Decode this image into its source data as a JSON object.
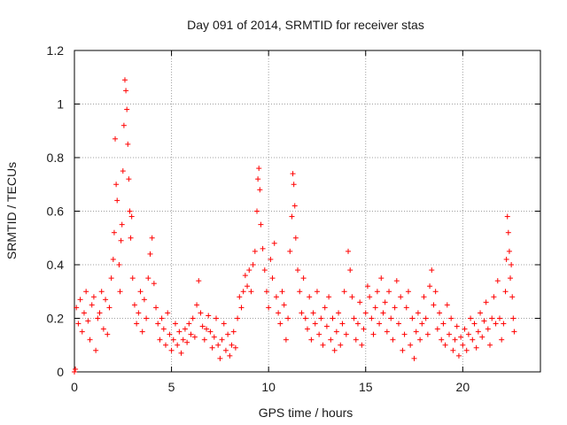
{
  "chart_data": {
    "type": "scatter",
    "title": "Day 091 of 2014, SRMTID for receiver stas",
    "xlabel": "GPS time / hours",
    "ylabel": "SRMTID / TECUs",
    "xlim": [
      0,
      24
    ],
    "ylim": [
      0,
      1.2
    ],
    "xticks": [
      0,
      5,
      10,
      15,
      20
    ],
    "yticks": [
      0,
      0.2,
      0.4,
      0.6,
      0.8,
      1,
      1.2
    ],
    "ytick_labels": [
      "0",
      "0.2",
      "0.4",
      "0.6",
      "0.8",
      "1",
      "1.2"
    ],
    "grid": true,
    "marker": "+",
    "color": "#ff0000",
    "series": [
      {
        "name": "SRMTID",
        "points": [
          [
            0.0,
            0.0
          ],
          [
            0.05,
            0.01
          ],
          [
            0.1,
            0.24
          ],
          [
            0.2,
            0.18
          ],
          [
            0.3,
            0.27
          ],
          [
            0.4,
            0.15
          ],
          [
            0.5,
            0.22
          ],
          [
            0.6,
            0.3
          ],
          [
            0.7,
            0.19
          ],
          [
            0.8,
            0.12
          ],
          [
            0.9,
            0.25
          ],
          [
            1.0,
            0.28
          ],
          [
            1.1,
            0.08
          ],
          [
            1.2,
            0.2
          ],
          [
            1.3,
            0.22
          ],
          [
            1.4,
            0.3
          ],
          [
            1.5,
            0.16
          ],
          [
            1.6,
            0.27
          ],
          [
            1.7,
            0.14
          ],
          [
            1.8,
            0.24
          ],
          [
            1.9,
            0.35
          ],
          [
            2.0,
            0.42
          ],
          [
            2.05,
            0.52
          ],
          [
            2.1,
            0.87
          ],
          [
            2.15,
            0.7
          ],
          [
            2.2,
            0.64
          ],
          [
            2.3,
            0.4
          ],
          [
            2.35,
            0.3
          ],
          [
            2.4,
            0.49
          ],
          [
            2.45,
            0.55
          ],
          [
            2.5,
            0.75
          ],
          [
            2.55,
            0.92
          ],
          [
            2.6,
            1.09
          ],
          [
            2.65,
            1.05
          ],
          [
            2.7,
            0.98
          ],
          [
            2.75,
            0.85
          ],
          [
            2.8,
            0.72
          ],
          [
            2.85,
            0.6
          ],
          [
            2.9,
            0.5
          ],
          [
            2.95,
            0.58
          ],
          [
            3.0,
            0.35
          ],
          [
            3.1,
            0.25
          ],
          [
            3.2,
            0.18
          ],
          [
            3.3,
            0.22
          ],
          [
            3.4,
            0.3
          ],
          [
            3.5,
            0.15
          ],
          [
            3.6,
            0.27
          ],
          [
            3.7,
            0.2
          ],
          [
            3.8,
            0.35
          ],
          [
            3.9,
            0.44
          ],
          [
            4.0,
            0.5
          ],
          [
            4.1,
            0.33
          ],
          [
            4.2,
            0.24
          ],
          [
            4.3,
            0.18
          ],
          [
            4.4,
            0.12
          ],
          [
            4.5,
            0.2
          ],
          [
            4.6,
            0.16
          ],
          [
            4.7,
            0.1
          ],
          [
            4.8,
            0.22
          ],
          [
            4.9,
            0.14
          ],
          [
            5.0,
            0.08
          ],
          [
            5.1,
            0.12
          ],
          [
            5.2,
            0.18
          ],
          [
            5.3,
            0.1
          ],
          [
            5.4,
            0.15
          ],
          [
            5.5,
            0.07
          ],
          [
            5.6,
            0.12
          ],
          [
            5.7,
            0.16
          ],
          [
            5.8,
            0.11
          ],
          [
            5.9,
            0.18
          ],
          [
            6.0,
            0.14
          ],
          [
            6.1,
            0.2
          ],
          [
            6.2,
            0.13
          ],
          [
            6.3,
            0.25
          ],
          [
            6.4,
            0.34
          ],
          [
            6.5,
            0.22
          ],
          [
            6.6,
            0.17
          ],
          [
            6.7,
            0.12
          ],
          [
            6.8,
            0.16
          ],
          [
            6.9,
            0.21
          ],
          [
            7.0,
            0.15
          ],
          [
            7.1,
            0.09
          ],
          [
            7.2,
            0.13
          ],
          [
            7.3,
            0.2
          ],
          [
            7.4,
            0.1
          ],
          [
            7.5,
            0.05
          ],
          [
            7.6,
            0.12
          ],
          [
            7.7,
            0.18
          ],
          [
            7.8,
            0.08
          ],
          [
            7.9,
            0.14
          ],
          [
            8.0,
            0.06
          ],
          [
            8.1,
            0.1
          ],
          [
            8.2,
            0.15
          ],
          [
            8.3,
            0.09
          ],
          [
            8.4,
            0.2
          ],
          [
            8.5,
            0.28
          ],
          [
            8.6,
            0.24
          ],
          [
            8.7,
            0.3
          ],
          [
            8.8,
            0.36
          ],
          [
            8.9,
            0.32
          ],
          [
            9.0,
            0.38
          ],
          [
            9.1,
            0.3
          ],
          [
            9.2,
            0.4
          ],
          [
            9.3,
            0.45
          ],
          [
            9.4,
            0.6
          ],
          [
            9.45,
            0.72
          ],
          [
            9.5,
            0.76
          ],
          [
            9.55,
            0.68
          ],
          [
            9.6,
            0.55
          ],
          [
            9.7,
            0.46
          ],
          [
            9.8,
            0.38
          ],
          [
            9.9,
            0.3
          ],
          [
            10.0,
            0.24
          ],
          [
            10.1,
            0.42
          ],
          [
            10.2,
            0.35
          ],
          [
            10.3,
            0.48
          ],
          [
            10.4,
            0.28
          ],
          [
            10.5,
            0.22
          ],
          [
            10.6,
            0.18
          ],
          [
            10.7,
            0.3
          ],
          [
            10.8,
            0.25
          ],
          [
            10.9,
            0.12
          ],
          [
            11.0,
            0.2
          ],
          [
            11.1,
            0.45
          ],
          [
            11.2,
            0.58
          ],
          [
            11.25,
            0.74
          ],
          [
            11.3,
            0.7
          ],
          [
            11.35,
            0.62
          ],
          [
            11.4,
            0.5
          ],
          [
            11.5,
            0.38
          ],
          [
            11.6,
            0.3
          ],
          [
            11.7,
            0.22
          ],
          [
            11.8,
            0.35
          ],
          [
            11.9,
            0.2
          ],
          [
            12.0,
            0.16
          ],
          [
            12.1,
            0.28
          ],
          [
            12.2,
            0.12
          ],
          [
            12.3,
            0.22
          ],
          [
            12.4,
            0.18
          ],
          [
            12.5,
            0.3
          ],
          [
            12.6,
            0.14
          ],
          [
            12.7,
            0.2
          ],
          [
            12.8,
            0.1
          ],
          [
            12.9,
            0.24
          ],
          [
            13.0,
            0.17
          ],
          [
            13.1,
            0.28
          ],
          [
            13.2,
            0.12
          ],
          [
            13.3,
            0.2
          ],
          [
            13.4,
            0.08
          ],
          [
            13.5,
            0.15
          ],
          [
            13.6,
            0.22
          ],
          [
            13.7,
            0.1
          ],
          [
            13.8,
            0.18
          ],
          [
            13.9,
            0.3
          ],
          [
            14.0,
            0.14
          ],
          [
            14.1,
            0.45
          ],
          [
            14.2,
            0.38
          ],
          [
            14.3,
            0.28
          ],
          [
            14.4,
            0.2
          ],
          [
            14.5,
            0.12
          ],
          [
            14.6,
            0.18
          ],
          [
            14.7,
            0.26
          ],
          [
            14.8,
            0.1
          ],
          [
            14.9,
            0.16
          ],
          [
            15.0,
            0.22
          ],
          [
            15.1,
            0.32
          ],
          [
            15.2,
            0.28
          ],
          [
            15.3,
            0.2
          ],
          [
            15.4,
            0.14
          ],
          [
            15.5,
            0.24
          ],
          [
            15.6,
            0.3
          ],
          [
            15.7,
            0.18
          ],
          [
            15.8,
            0.35
          ],
          [
            15.9,
            0.22
          ],
          [
            16.0,
            0.26
          ],
          [
            16.1,
            0.15
          ],
          [
            16.2,
            0.3
          ],
          [
            16.3,
            0.2
          ],
          [
            16.4,
            0.12
          ],
          [
            16.5,
            0.24
          ],
          [
            16.6,
            0.34
          ],
          [
            16.7,
            0.18
          ],
          [
            16.8,
            0.28
          ],
          [
            16.9,
            0.08
          ],
          [
            17.0,
            0.14
          ],
          [
            17.1,
            0.24
          ],
          [
            17.2,
            0.3
          ],
          [
            17.3,
            0.1
          ],
          [
            17.4,
            0.2
          ],
          [
            17.5,
            0.05
          ],
          [
            17.6,
            0.15
          ],
          [
            17.7,
            0.22
          ],
          [
            17.8,
            0.12
          ],
          [
            17.9,
            0.18
          ],
          [
            18.0,
            0.28
          ],
          [
            18.1,
            0.2
          ],
          [
            18.2,
            0.14
          ],
          [
            18.3,
            0.32
          ],
          [
            18.4,
            0.38
          ],
          [
            18.5,
            0.25
          ],
          [
            18.6,
            0.3
          ],
          [
            18.7,
            0.16
          ],
          [
            18.8,
            0.22
          ],
          [
            18.9,
            0.12
          ],
          [
            19.0,
            0.18
          ],
          [
            19.1,
            0.1
          ],
          [
            19.2,
            0.25
          ],
          [
            19.3,
            0.14
          ],
          [
            19.4,
            0.2
          ],
          [
            19.5,
            0.08
          ],
          [
            19.6,
            0.12
          ],
          [
            19.7,
            0.17
          ],
          [
            19.8,
            0.06
          ],
          [
            19.9,
            0.13
          ],
          [
            20.0,
            0.1
          ],
          [
            20.1,
            0.16
          ],
          [
            20.2,
            0.08
          ],
          [
            20.3,
            0.14
          ],
          [
            20.4,
            0.2
          ],
          [
            20.5,
            0.12
          ],
          [
            20.6,
            0.18
          ],
          [
            20.7,
            0.09
          ],
          [
            20.8,
            0.15
          ],
          [
            20.9,
            0.22
          ],
          [
            21.0,
            0.13
          ],
          [
            21.1,
            0.19
          ],
          [
            21.2,
            0.26
          ],
          [
            21.3,
            0.16
          ],
          [
            21.4,
            0.1
          ],
          [
            21.5,
            0.2
          ],
          [
            21.6,
            0.28
          ],
          [
            21.7,
            0.18
          ],
          [
            21.8,
            0.34
          ],
          [
            21.9,
            0.2
          ],
          [
            22.0,
            0.12
          ],
          [
            22.1,
            0.18
          ],
          [
            22.2,
            0.3
          ],
          [
            22.25,
            0.42
          ],
          [
            22.3,
            0.58
          ],
          [
            22.35,
            0.52
          ],
          [
            22.4,
            0.45
          ],
          [
            22.45,
            0.35
          ],
          [
            22.5,
            0.4
          ],
          [
            22.55,
            0.28
          ],
          [
            22.6,
            0.2
          ],
          [
            22.65,
            0.15
          ]
        ]
      }
    ]
  }
}
